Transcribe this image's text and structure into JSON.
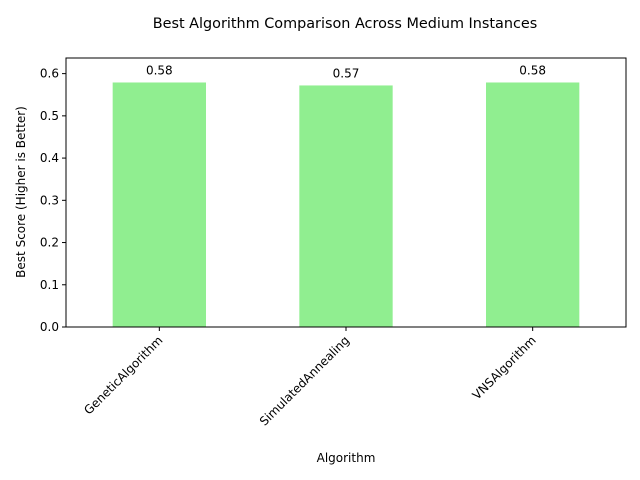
{
  "chart_data": {
    "type": "bar",
    "title": "Best Algorithm Comparison Across Medium Instances",
    "xlabel": "Algorithm",
    "ylabel": "Best Score (Higher is Better)",
    "categories": [
      "GeneticAlgorithm",
      "SimulatedAnnealing",
      "VNSAlgorithm"
    ],
    "values": [
      0.579,
      0.572,
      0.579
    ],
    "data_labels": [
      "0.58",
      "0.57",
      "0.58"
    ],
    "ylim": [
      0,
      0.637
    ],
    "yticks": [
      0.0,
      0.1,
      0.2,
      0.3,
      0.4,
      0.5,
      0.6
    ],
    "ytick_labels": [
      "0.0",
      "0.1",
      "0.2",
      "0.3",
      "0.4",
      "0.5",
      "0.6"
    ],
    "grid": false,
    "bar_color": "#90ee90"
  }
}
